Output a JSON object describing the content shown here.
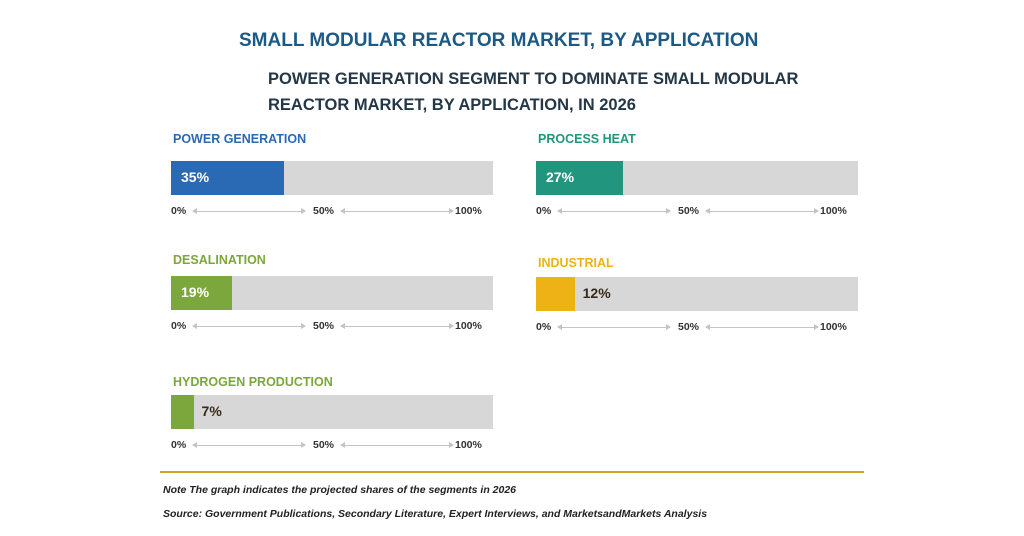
{
  "title": "SMALL MODULAR REACTOR MARKET, BY APPLICATION",
  "subtitle": "POWER GENERATION SEGMENT TO DOMINATE SMALL MODULAR REACTOR MARKET, BY APPLICATION, IN 2026",
  "chart_data": {
    "type": "bar",
    "categories": [
      "POWER GENERATION",
      "PROCESS HEAT",
      "DESALINATION",
      "INDUSTRIAL",
      "HYDROGEN PRODUCTION"
    ],
    "values": [
      35,
      27,
      19,
      12,
      7
    ],
    "value_labels": [
      "35%",
      "27%",
      "19%",
      "12%",
      "7%"
    ],
    "colors": [
      "#2a69b3",
      "#22957e",
      "#7ba73c",
      "#efb216",
      "#7ba73c"
    ],
    "label_colors": [
      "#2a69b3",
      "#22957e",
      "#7ba73c",
      "#efb216",
      "#7ba73c"
    ],
    "ylim": [
      0,
      100
    ],
    "tick_labels": [
      "0%",
      "50%",
      "100%"
    ],
    "orientation": "horizontal",
    "track_color": "#d7d7d7"
  },
  "footer": {
    "note": "Note The graph indicates the projected shares of the segments in 2026",
    "source": "Source: Government Publications, Secondary Literature, Expert Interviews, and MarketsandMarkets Analysis"
  }
}
